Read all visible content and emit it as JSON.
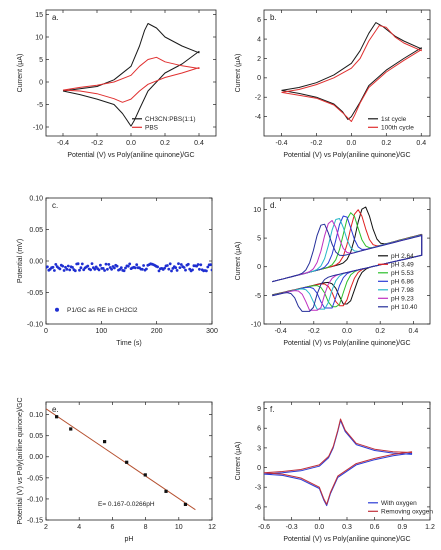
{
  "figure": {
    "panels": [
      {
        "id": "a",
        "label": "a.",
        "xlabel": "Potential (V) vs Poly(aniline quinone)/GC",
        "ylabel": "Current (μA)"
      },
      {
        "id": "b",
        "label": "b.",
        "xlabel": "Potential (V) vs Poly(aniline quinone)/GC",
        "ylabel": "Current (μA)"
      },
      {
        "id": "c",
        "label": "c.",
        "xlabel": "Time (s)",
        "ylabel": "Potential (mV)"
      },
      {
        "id": "d",
        "label": "d.",
        "xlabel": "Potential (V) vs Poly(aniline quinone)/GC",
        "ylabel": "Current (μA)"
      },
      {
        "id": "e",
        "label": "e.",
        "xlabel": "pH",
        "ylabel": "Potential (V) vs Poly(aniline quinone)/GC"
      },
      {
        "id": "f",
        "label": "f.",
        "xlabel": "Potential (V) vs Poly(aniline quinone)/GC",
        "ylabel": "Current (μA)"
      }
    ]
  },
  "chart_data": [
    {
      "panel": "a",
      "type": "line",
      "xlabel": "Potential (V) vs Poly(aniline quinone)/GC",
      "ylabel": "Current (μA)",
      "xlim": [
        -0.5,
        0.5
      ],
      "ylim": [
        -12,
        16
      ],
      "xticks": [
        -0.4,
        -0.2,
        0.0,
        0.2,
        0.4
      ],
      "yticks": [
        -10,
        -5,
        0,
        5,
        10,
        15
      ],
      "xtick_labels": [
        "-0.4",
        "-0.2",
        "0.0",
        "0.2",
        "0.4"
      ],
      "ytick_labels": [
        "-10",
        "-5",
        "0",
        "5",
        "10",
        "15"
      ],
      "legend_position": "bottom-right",
      "series": [
        {
          "name": "CH3CN:PBS(1:1)",
          "color": "#1a1a1a",
          "x": [
            -0.4,
            -0.3,
            -0.2,
            -0.1,
            0.0,
            0.05,
            0.08,
            0.1,
            0.15,
            0.2,
            0.3,
            0.4,
            0.4,
            0.3,
            0.2,
            0.1,
            0.05,
            0.02,
            0.0,
            -0.05,
            -0.1,
            -0.2,
            -0.3,
            -0.4
          ],
          "y": [
            -2.0,
            -1.5,
            -1.0,
            0.5,
            3.5,
            8.0,
            11.5,
            13.0,
            12.0,
            10.0,
            8.0,
            6.5,
            6.8,
            4.0,
            2.0,
            -2.0,
            -6.0,
            -8.5,
            -9.8,
            -7.0,
            -5.0,
            -3.8,
            -2.8,
            -2.0
          ]
        },
        {
          "name": "PBS",
          "color": "#e03030",
          "x": [
            -0.4,
            -0.3,
            -0.2,
            -0.1,
            0.0,
            0.05,
            0.1,
            0.15,
            0.2,
            0.3,
            0.4,
            0.4,
            0.3,
            0.2,
            0.1,
            0.05,
            0.0,
            -0.05,
            -0.1,
            -0.2,
            -0.3,
            -0.4
          ],
          "y": [
            -1.8,
            -1.2,
            -0.7,
            0.0,
            1.5,
            3.5,
            5.0,
            5.5,
            4.5,
            3.6,
            3.0,
            3.2,
            2.0,
            1.0,
            -0.5,
            -2.0,
            -3.8,
            -4.5,
            -3.7,
            -2.6,
            -2.0,
            -1.8
          ]
        }
      ]
    },
    {
      "panel": "b",
      "type": "line",
      "xlabel": "Potential (V) vs Poly(aniline quinone)/GC",
      "ylabel": "Current (μA)",
      "xlim": [
        -0.5,
        0.45
      ],
      "ylim": [
        -6,
        7
      ],
      "xticks": [
        -0.4,
        -0.2,
        0.0,
        0.2,
        0.4
      ],
      "yticks": [
        -4,
        -2,
        0,
        2,
        4,
        6
      ],
      "xtick_labels": [
        "-0.4",
        "-0.2",
        "0.0",
        "0.2",
        "0.4"
      ],
      "ytick_labels": [
        "-4",
        "-2",
        "0",
        "2",
        "4",
        "6"
      ],
      "legend_position": "bottom-right",
      "series": [
        {
          "name": "1st cycle",
          "color": "#1a1a1a",
          "x": [
            -0.4,
            -0.3,
            -0.2,
            -0.1,
            0.0,
            0.05,
            0.1,
            0.14,
            0.18,
            0.25,
            0.3,
            0.4,
            0.4,
            0.3,
            0.2,
            0.1,
            0.05,
            0.0,
            -0.02,
            -0.05,
            -0.1,
            -0.2,
            -0.3,
            -0.4
          ],
          "y": [
            -1.3,
            -1.0,
            -0.5,
            0.3,
            1.5,
            2.8,
            4.6,
            5.7,
            5.3,
            4.3,
            3.8,
            3.0,
            3.1,
            2.0,
            0.8,
            -0.8,
            -2.5,
            -4.0,
            -4.3,
            -3.5,
            -2.7,
            -2.0,
            -1.6,
            -1.3
          ]
        },
        {
          "name": "100th cycle",
          "color": "#e03030",
          "x": [
            -0.4,
            -0.3,
            -0.2,
            -0.1,
            0.0,
            0.05,
            0.1,
            0.16,
            0.2,
            0.25,
            0.3,
            0.4,
            0.4,
            0.3,
            0.2,
            0.1,
            0.05,
            0.02,
            0.0,
            -0.05,
            -0.1,
            -0.2,
            -0.3,
            -0.4
          ],
          "y": [
            -1.5,
            -1.2,
            -0.7,
            0.0,
            1.0,
            2.0,
            3.8,
            5.4,
            5.2,
            4.2,
            3.6,
            2.8,
            2.9,
            1.8,
            0.6,
            -1.0,
            -2.6,
            -3.8,
            -4.5,
            -3.6,
            -2.8,
            -2.1,
            -1.8,
            -1.5
          ]
        }
      ]
    },
    {
      "panel": "c",
      "type": "scatter",
      "xlabel": "Time (s)",
      "ylabel": "Potential (mV)",
      "xlim": [
        0,
        300
      ],
      "ylim": [
        -0.1,
        0.1
      ],
      "xticks": [
        0,
        100,
        200,
        300
      ],
      "yticks": [
        -0.1,
        -0.05,
        0.0,
        0.05,
        0.1
      ],
      "xtick_labels": [
        "0",
        "100",
        "200",
        "300"
      ],
      "ytick_labels": [
        "-0.10",
        "-0.05",
        "0.00",
        "0.05",
        "0.10"
      ],
      "legend_position": "bottom-left",
      "series": [
        {
          "name": "P1/GC as RE in CH2Cl2",
          "color": "#1f2fd1",
          "x_start": 0,
          "x_end": 300,
          "points": 120,
          "mean": -0.01,
          "spread": 0.006
        }
      ]
    },
    {
      "panel": "d",
      "type": "line",
      "xlabel": "Potential (V) vs Poly(aniline quinone)/GC",
      "ylabel": "Current (μA)",
      "xlim": [
        -0.5,
        0.5
      ],
      "ylim": [
        -10,
        12
      ],
      "xticks": [
        -0.4,
        -0.2,
        0.0,
        0.2,
        0.4
      ],
      "yticks": [
        -10,
        -5,
        0,
        5,
        10
      ],
      "xtick_labels": [
        "-0.4",
        "-0.2",
        "0.0",
        "0.2",
        "0.4"
      ],
      "ytick_labels": [
        "-10",
        "-5",
        "0",
        "5",
        "10"
      ],
      "legend_position": "bottom-right",
      "series": [
        {
          "name": "pH 2.64",
          "color": "#111111",
          "ox": 0.1,
          "red": 0.0,
          "ipa": 10.5,
          "ipc": -6.5
        },
        {
          "name": "pH 3.49",
          "color": "#e02020",
          "ox": 0.06,
          "red": -0.03,
          "ipa": 10.2,
          "ipc": -6.8
        },
        {
          "name": "pH 5.53",
          "color": "#2bbf2b",
          "ox": 0.02,
          "red": -0.07,
          "ipa": 10.0,
          "ipc": -7.0
        },
        {
          "name": "pH 6.86",
          "color": "#2a3bd6",
          "ox": -0.02,
          "red": -0.11,
          "ipa": 9.8,
          "ipc": -7.2
        },
        {
          "name": "pH 7.98",
          "color": "#26b8c8",
          "ox": -0.06,
          "red": -0.15,
          "ipa": 9.6,
          "ipc": -7.4
        },
        {
          "name": "pH 9.23",
          "color": "#c02fc0",
          "ox": -0.1,
          "red": -0.19,
          "ipa": 9.4,
          "ipc": -7.6
        },
        {
          "name": "pH 10.40",
          "color": "#242e9a",
          "ox": -0.15,
          "red": -0.24,
          "ipa": 9.2,
          "ipc": -7.8
        }
      ]
    },
    {
      "panel": "e",
      "type": "scatter",
      "xlabel": "pH",
      "ylabel": "Potential (V) vs Poly(aniline quinone)/GC",
      "xlim": [
        2,
        12
      ],
      "ylim": [
        -0.15,
        0.13
      ],
      "xticks": [
        2,
        4,
        6,
        8,
        10,
        12
      ],
      "yticks": [
        -0.15,
        -0.1,
        -0.05,
        0.0,
        0.05,
        0.1
      ],
      "xtick_labels": [
        "2",
        "4",
        "6",
        "8",
        "10",
        "12"
      ],
      "ytick_labels": [
        "-0.15",
        "-0.10",
        "-0.05",
        "0.00",
        "0.05",
        "0.10"
      ],
      "annotation": "E= 0.167-0.0266pH",
      "fit": {
        "intercept": 0.167,
        "slope": -0.0266,
        "x_range": [
          2.0,
          11.0
        ],
        "color": "#b5502f"
      },
      "points": {
        "color": "#111111",
        "x": [
          2.64,
          3.49,
          5.53,
          6.86,
          7.98,
          9.23,
          10.4
        ],
        "y": [
          0.095,
          0.066,
          0.036,
          -0.013,
          -0.043,
          -0.082,
          -0.113
        ]
      }
    },
    {
      "panel": "f",
      "type": "line",
      "xlabel": "Potential (V) vs Poly(aniline quinone)/GC",
      "ylabel": "Current (μA)",
      "xlim": [
        -0.6,
        1.2
      ],
      "ylim": [
        -8,
        10
      ],
      "xticks": [
        -0.6,
        -0.3,
        0.0,
        0.3,
        0.6,
        0.9,
        1.2
      ],
      "yticks": [
        -6,
        -3,
        0,
        3,
        6,
        9
      ],
      "xtick_labels": [
        "-0.6",
        "-0.3",
        "0.0",
        "0.3",
        "0.6",
        "0.9",
        "1.2"
      ],
      "ytick_labels": [
        "-6",
        "-3",
        "0",
        "3",
        "6",
        "9"
      ],
      "legend_position": "bottom-right",
      "series": [
        {
          "name": "With oxygen",
          "color": "#2a3bd6",
          "x": [
            -0.6,
            -0.4,
            -0.2,
            0.0,
            0.1,
            0.15,
            0.2,
            0.23,
            0.28,
            0.4,
            0.6,
            0.8,
            1.0,
            1.0,
            0.8,
            0.6,
            0.4,
            0.2,
            0.12,
            0.08,
            0.05,
            0.0,
            -0.2,
            -0.4,
            -0.6
          ],
          "y": [
            -1.0,
            -0.8,
            -0.5,
            0.2,
            1.5,
            3.0,
            5.5,
            7.2,
            5.5,
            3.5,
            2.6,
            2.2,
            2.0,
            2.2,
            1.8,
            1.2,
            0.4,
            -1.5,
            -4.0,
            -5.8,
            -5.0,
            -3.2,
            -1.8,
            -1.2,
            -1.0
          ]
        },
        {
          "name": "Removing oxygen",
          "color": "#c0303a",
          "x": [
            -0.6,
            -0.4,
            -0.2,
            0.0,
            0.1,
            0.15,
            0.2,
            0.23,
            0.28,
            0.4,
            0.6,
            0.8,
            1.0,
            1.0,
            0.8,
            0.6,
            0.4,
            0.2,
            0.12,
            0.08,
            0.05,
            0.0,
            -0.2,
            -0.4,
            -0.6
          ],
          "y": [
            -0.8,
            -0.6,
            -0.3,
            0.4,
            1.7,
            3.2,
            5.7,
            7.4,
            5.7,
            3.7,
            2.8,
            2.4,
            2.3,
            2.4,
            2.0,
            1.4,
            0.6,
            -1.3,
            -3.8,
            -5.6,
            -4.8,
            -3.0,
            -1.6,
            -1.0,
            -0.8
          ]
        }
      ]
    }
  ]
}
